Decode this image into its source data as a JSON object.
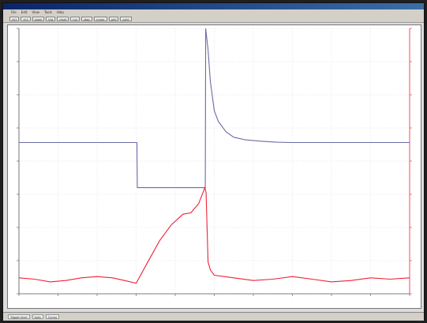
{
  "window": {
    "menu": [
      "File",
      "Edit",
      "View",
      "Tools",
      "Help"
    ],
    "toolbar": [
      "ch1",
      "ch2",
      "zoom",
      "trig",
      "reset",
      "run",
      "stop",
      "cursor",
      "grid",
      "print"
    ],
    "statusbar": [
      "Trigger level",
      "Auto",
      "Cursor"
    ]
  },
  "colors": {
    "series1": "#6a6aa8",
    "series2": "#ee2233",
    "grid": "#cfcfe8",
    "right_axis": "#ee2233"
  },
  "chart_data": {
    "type": "line",
    "title": "",
    "xlabel": "",
    "ylabel": "",
    "xlim": [
      0,
      100
    ],
    "left_ylim": [
      0,
      100
    ],
    "right_ylim": [
      0,
      100
    ],
    "grid": true,
    "series": [
      {
        "axis": "left",
        "color": "#6a6aa8",
        "x": [
          0,
          30.2,
          30.3,
          47.7,
          47.8,
          48.4,
          49,
          50,
          51,
          53,
          55,
          58,
          62,
          66,
          70,
          80,
          90,
          100
        ],
        "y": [
          57,
          57,
          40,
          40,
          100,
          92,
          80,
          69,
          65,
          61,
          59,
          58,
          57.5,
          57.1,
          57,
          57,
          57,
          57
        ]
      },
      {
        "axis": "right",
        "color": "#ee2233",
        "x": [
          0,
          4,
          8,
          12,
          16,
          20,
          24,
          27,
          30,
          33,
          36,
          39,
          42,
          44,
          46,
          47.6,
          47.9,
          48.4,
          49,
          50,
          55,
          60,
          65,
          70,
          75,
          80,
          85,
          90,
          95,
          100
        ],
        "y": [
          6,
          5.5,
          4.5,
          5,
          6,
          6.5,
          6,
          5,
          4,
          12,
          20,
          26,
          30,
          30.5,
          34,
          40,
          38,
          12,
          9,
          7,
          6,
          5,
          5.5,
          6.5,
          5.5,
          4.5,
          5,
          6,
          5.5,
          6
        ]
      }
    ]
  }
}
